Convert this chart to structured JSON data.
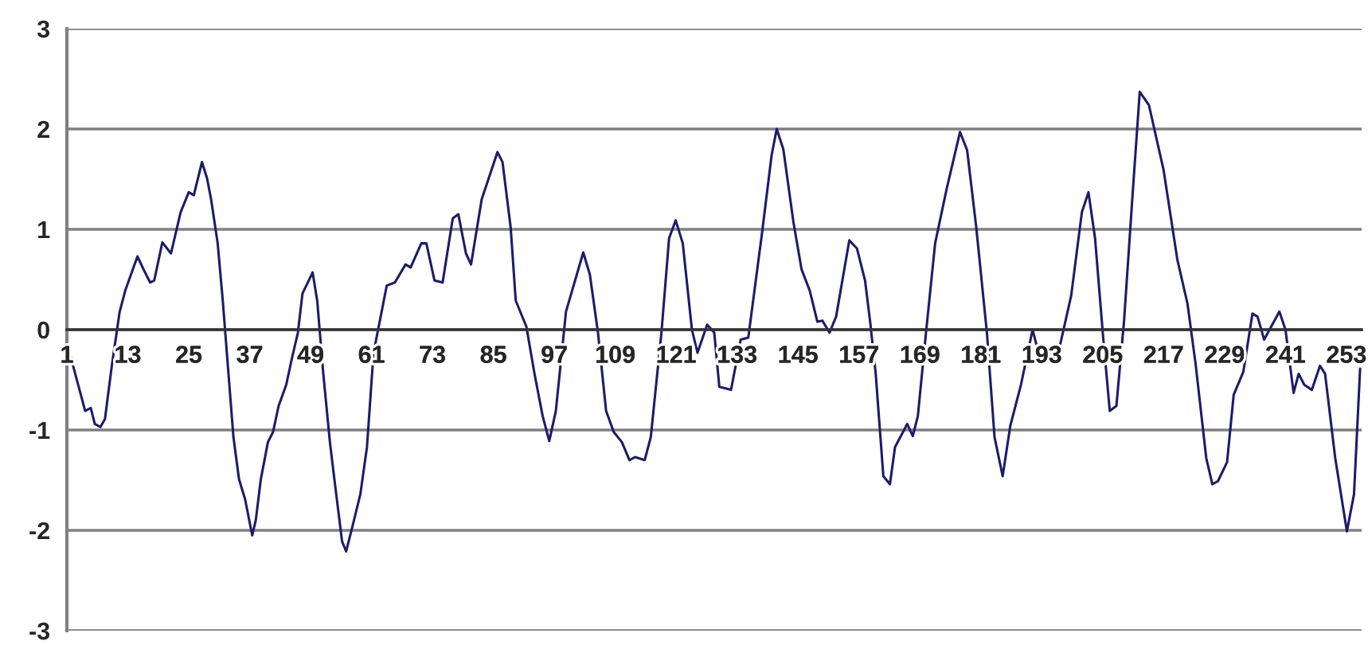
{
  "chart_data": {
    "type": "line",
    "xlim": [
      1,
      256
    ],
    "ylim": [
      -3,
      3
    ],
    "xticks": [
      1,
      13,
      25,
      37,
      49,
      61,
      73,
      85,
      97,
      109,
      121,
      133,
      145,
      157,
      169,
      181,
      193,
      205,
      217,
      229,
      241,
      253
    ],
    "yticks": [
      -3,
      -2,
      -1,
      0,
      1,
      2,
      3
    ],
    "grid": "y",
    "legend": false,
    "marker": "none",
    "line_style": "solid",
    "series": [
      {
        "color": "#1c1c6b",
        "x": [
          1,
          4.6,
          5.7,
          6.5,
          7.6,
          8.5,
          9.9,
          11.4,
          12.5,
          14.9,
          16.1,
          17.4,
          18.2,
          19.8,
          21.5,
          23.4,
          25,
          26,
          27.6,
          28.6,
          29.4,
          30.7,
          31.7,
          33,
          33.8,
          34.9,
          36.1,
          37.5,
          38.2,
          39.2,
          40.6,
          41.6,
          42.7,
          44.2,
          45.3,
          46.5,
          47.4,
          49.4,
          50.3,
          51.5,
          52.8,
          53.8,
          55.2,
          56,
          57.3,
          58.8,
          60.1,
          61.4,
          62.8,
          64,
          65.6,
          67.7,
          68.7,
          70.8,
          71.8,
          73.4,
          75,
          77,
          78.1,
          79.6,
          80.6,
          82.7,
          85.8,
          86.8,
          88.4,
          89.4,
          91.5,
          93.1,
          94.7,
          96,
          97.3,
          99.3,
          102.7,
          104,
          105.6,
          107.2,
          108.7,
          110.3,
          111.8,
          112.9,
          114.8,
          116,
          118.1,
          119.6,
          120.9,
          122.3,
          124.1,
          125.2,
          127.1,
          128.5,
          129.5,
          131.8,
          133.7,
          135.2,
          137.9,
          139.8,
          140.8,
          142.1,
          144.1,
          145.7,
          147.3,
          148.8,
          149.8,
          151.2,
          152.5,
          155.1,
          156.6,
          158.2,
          159.2,
          160.3,
          161.8,
          163.1,
          164.1,
          166.5,
          167.6,
          168.6,
          170.2,
          172,
          174.3,
          176.9,
          178.3,
          180.1,
          182.2,
          183.7,
          185.3,
          186.8,
          188.9,
          191.2,
          192,
          194.1,
          196,
          198.8,
          200.9,
          202.2,
          203.5,
          205.1,
          206.4,
          207.7,
          209.2,
          210.8,
          212.3,
          214.1,
          217,
          219.7,
          221.7,
          223.3,
          225.4,
          226.6,
          227.7,
          229.5,
          230.8,
          232.7,
          234.5,
          235.5,
          236.8,
          239.8,
          241,
          242.6,
          243.6,
          244.7,
          246.2,
          247.8,
          248.8,
          250.8,
          253.1,
          254.5,
          255.7
        ],
        "values": [
          -0.13,
          -0.81,
          -0.78,
          -0.94,
          -0.97,
          -0.89,
          -0.34,
          0.18,
          0.39,
          0.73,
          0.6,
          0.47,
          0.49,
          0.87,
          0.76,
          1.17,
          1.37,
          1.34,
          1.67,
          1.51,
          1.3,
          0.86,
          0.29,
          -0.55,
          -1.07,
          -1.49,
          -1.69,
          -2.05,
          -1.9,
          -1.49,
          -1.12,
          -1.02,
          -0.76,
          -0.55,
          -0.29,
          -0.03,
          0.36,
          0.57,
          0.29,
          -0.44,
          -1.12,
          -1.54,
          -2.11,
          -2.21,
          -1.95,
          -1.64,
          -1.17,
          -0.23,
          0.13,
          0.44,
          0.47,
          0.65,
          0.62,
          0.86,
          0.86,
          0.49,
          0.47,
          1.11,
          1.15,
          0.76,
          0.65,
          1.3,
          1.77,
          1.67,
          1.02,
          0.29,
          0.03,
          -0.44,
          -0.86,
          -1.11,
          -0.81,
          0.18,
          0.77,
          0.55,
          -0.03,
          -0.81,
          -1.02,
          -1.12,
          -1.3,
          -1.27,
          -1.3,
          -1.07,
          -0.03,
          0.91,
          1.09,
          0.86,
          0,
          -0.23,
          0.05,
          -0.03,
          -0.57,
          -0.6,
          -0.1,
          -0.08,
          0.96,
          1.74,
          2.0,
          1.8,
          1.07,
          0.6,
          0.39,
          0.08,
          0.09,
          -0.03,
          0.13,
          0.89,
          0.81,
          0.49,
          0.08,
          -0.44,
          -1.46,
          -1.54,
          -1.17,
          -0.94,
          -1.06,
          -0.86,
          -0.03,
          0.86,
          1.41,
          1.97,
          1.79,
          1.02,
          -0.03,
          -1.07,
          -1.46,
          -0.96,
          -0.55,
          0,
          -0.16,
          -0.19,
          -0.29,
          0.34,
          1.17,
          1.37,
          0.91,
          -0.08,
          -0.81,
          -0.76,
          0.08,
          1.28,
          2.37,
          2.24,
          1.59,
          0.7,
          0.26,
          -0.34,
          -1.28,
          -1.54,
          -1.51,
          -1.32,
          -0.65,
          -0.42,
          0.16,
          0.13,
          -0.1,
          0.18,
          0,
          -0.63,
          -0.44,
          -0.55,
          -0.6,
          -0.36,
          -0.44,
          -1.28,
          -2.01,
          -1.64,
          -0.39
        ]
      }
    ]
  }
}
